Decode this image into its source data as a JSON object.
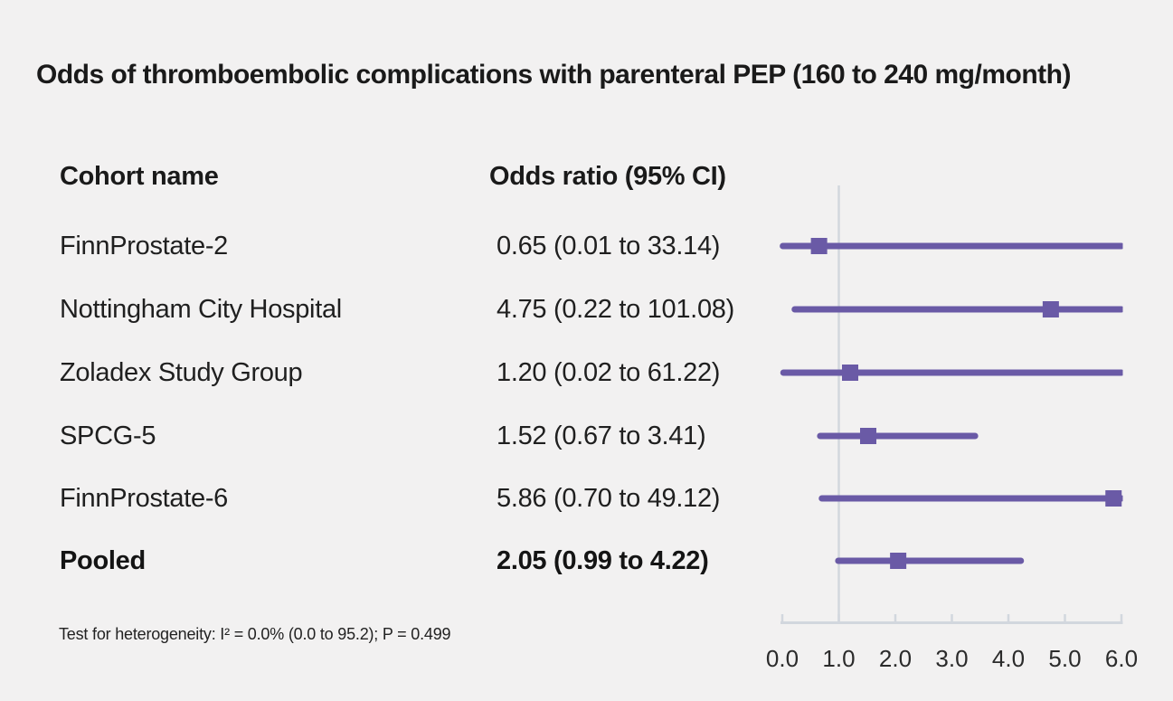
{
  "title": "Odds of thromboembolic complications with parenteral PEP (160 to 240 mg/month)",
  "table": {
    "col1_header": "Cohort name",
    "col2_header": "Odds ratio (95% CI)"
  },
  "footnote": "Test for heterogeneity: I² = 0.0% (0.0 to 95.2); P = 0.499",
  "chart_data": {
    "type": "forest",
    "title": "Odds of thromboembolic complications with parenteral PEP (160 to 240 mg/month)",
    "xlabel": "",
    "ylabel": "",
    "xlim": [
      0.0,
      6.0
    ],
    "x_ticks": [
      "0.0",
      "1.0",
      "2.0",
      "3.0",
      "4.0",
      "5.0",
      "6.0"
    ],
    "reference_line_x": 1.0,
    "grid": false,
    "studies": [
      {
        "name": "FinnProstate-2",
        "or_label": "0.65 (0.01 to 33.14)",
        "or": 0.65,
        "ci_low": 0.01,
        "ci_high": 33.14,
        "bold": false
      },
      {
        "name": "Nottingham City Hospital",
        "or_label": "4.75 (0.22 to 101.08)",
        "or": 4.75,
        "ci_low": 0.22,
        "ci_high": 101.08,
        "bold": false
      },
      {
        "name": "Zoladex Study Group",
        "or_label": "1.20 (0.02 to 61.22)",
        "or": 1.2,
        "ci_low": 0.02,
        "ci_high": 61.22,
        "bold": false
      },
      {
        "name": "SPCG-5",
        "or_label": "1.52 (0.67 to 3.41)",
        "or": 1.52,
        "ci_low": 0.67,
        "ci_high": 3.41,
        "bold": false
      },
      {
        "name": "FinnProstate-6",
        "or_label": "5.86 (0.70 to 49.12)",
        "or": 5.86,
        "ci_low": 0.7,
        "ci_high": 49.12,
        "bold": false
      },
      {
        "name": "Pooled",
        "or_label": "2.05 (0.99 to 4.22)",
        "or": 2.05,
        "ci_low": 0.99,
        "ci_high": 4.22,
        "bold": true
      }
    ],
    "colors": {
      "marker": "#6a5aa6",
      "axis": "#d2d7de",
      "background": "#f2f1f1",
      "text": "#1c1c1c",
      "tick_label": "#2b2b2b"
    }
  }
}
